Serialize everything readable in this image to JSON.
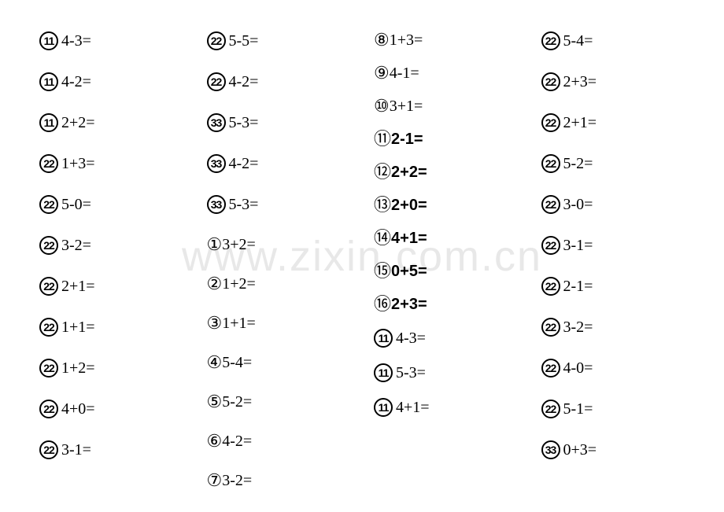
{
  "watermark": "www.zixin.com.cn",
  "columns": [
    {
      "cls": "c1",
      "items": [
        {
          "type": "badge",
          "num": "11",
          "expr": "4-3="
        },
        {
          "type": "badge",
          "num": "11",
          "expr": "4-2="
        },
        {
          "type": "badge",
          "num": "11",
          "expr": "2+2="
        },
        {
          "type": "badge",
          "num": "22",
          "expr": "1+3="
        },
        {
          "type": "badge",
          "num": "22",
          "expr": "5-0="
        },
        {
          "type": "badge",
          "num": "22",
          "expr": "3-2="
        },
        {
          "type": "badge",
          "num": "22",
          "expr": "2+1="
        },
        {
          "type": "badge",
          "num": "22",
          "expr": "1+1="
        },
        {
          "type": "badge",
          "num": "22",
          "expr": "1+2="
        },
        {
          "type": "badge",
          "num": "22",
          "expr": "4+0="
        },
        {
          "type": "badge",
          "num": "22",
          "expr": "3-1="
        }
      ]
    },
    {
      "cls": "c2",
      "items": [
        {
          "type": "badge",
          "num": "22",
          "expr": "5-5="
        },
        {
          "type": "badge",
          "num": "22",
          "expr": "4-2="
        },
        {
          "type": "badge",
          "num": "33",
          "expr": "5-3="
        },
        {
          "type": "badge",
          "num": "33",
          "expr": "4-2="
        },
        {
          "type": "badge",
          "num": "33",
          "expr": "5-3="
        },
        {
          "type": "circled",
          "num": "①",
          "expr": "3+2="
        },
        {
          "type": "circled",
          "num": "②",
          "expr": "1+2="
        },
        {
          "type": "circled",
          "num": "③",
          "expr": "1+1="
        },
        {
          "type": "circled",
          "num": "④",
          "expr": "5-4="
        },
        {
          "type": "circled",
          "num": "⑤",
          "expr": "5-2="
        },
        {
          "type": "circled",
          "num": "⑥",
          "expr": "4-2="
        },
        {
          "type": "circled",
          "num": "⑦",
          "expr": "3-2="
        }
      ]
    },
    {
      "cls": "c3",
      "items": [
        {
          "type": "circled",
          "num": "⑧",
          "expr": "1+3="
        },
        {
          "type": "circled",
          "num": "⑨",
          "expr": "4-1="
        },
        {
          "type": "circled",
          "num": "⑩",
          "expr": "3+1="
        },
        {
          "type": "circled",
          "num": "⑪",
          "expr": "2-1=",
          "bold": true
        },
        {
          "type": "circled",
          "num": "⑫",
          "expr": "2+2=",
          "bold": true
        },
        {
          "type": "circled",
          "num": "⑬",
          "expr": "2+0=",
          "bold": true
        },
        {
          "type": "circled",
          "num": "⑭",
          "expr": "4+1=",
          "bold": true
        },
        {
          "type": "circled",
          "num": "⑮",
          "expr": "0+5=",
          "bold": true
        },
        {
          "type": "circled",
          "num": "⑯",
          "expr": "2+3=",
          "bold": true
        },
        {
          "type": "badge",
          "num": "11",
          "expr": "4-3="
        },
        {
          "type": "badge",
          "num": "11",
          "expr": "5-3="
        },
        {
          "type": "badge",
          "num": "11",
          "expr": "4+1="
        }
      ]
    },
    {
      "cls": "c4",
      "items": [
        {
          "type": "badge",
          "num": "22",
          "expr": "5-4="
        },
        {
          "type": "badge",
          "num": "22",
          "expr": "2+3="
        },
        {
          "type": "badge",
          "num": "22",
          "expr": "2+1="
        },
        {
          "type": "badge",
          "num": "22",
          "expr": "5-2="
        },
        {
          "type": "badge",
          "num": "22",
          "expr": "3-0="
        },
        {
          "type": "badge",
          "num": "22",
          "expr": "3-1="
        },
        {
          "type": "badge",
          "num": "22",
          "expr": "2-1="
        },
        {
          "type": "badge",
          "num": "22",
          "expr": "3-2="
        },
        {
          "type": "badge",
          "num": "22",
          "expr": "4-0="
        },
        {
          "type": "badge",
          "num": "22",
          "expr": "5-1="
        },
        {
          "type": "badge",
          "num": "33",
          "expr": "0+3="
        }
      ]
    }
  ]
}
